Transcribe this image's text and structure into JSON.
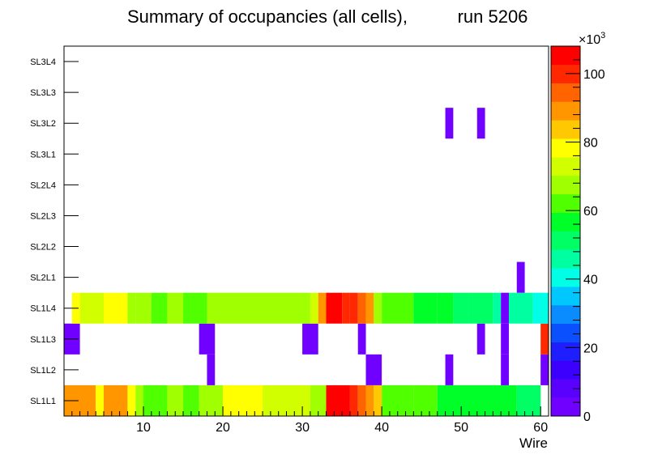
{
  "chart_data": {
    "type": "heatmap",
    "title": "Summary of occupancies (all cells),",
    "run_label": "run 5206",
    "xlabel": "Wire",
    "x_range": [
      0,
      61
    ],
    "x_ticks": [
      10,
      20,
      30,
      40,
      50,
      60
    ],
    "y_labels": [
      "SL1L1",
      "SL1L2",
      "SL1L3",
      "SL1L4",
      "SL2L1",
      "SL2L2",
      "SL2L3",
      "SL2L4",
      "SL3L1",
      "SL3L2",
      "SL3L3",
      "SL3L4"
    ],
    "z_max": 108000,
    "colorbar": {
      "multiplier_label": "×10",
      "multiplier_exponent": "3",
      "ticks": [
        0,
        20,
        40,
        60,
        80,
        100
      ],
      "tick_scale": 1000,
      "colors": [
        "#7000ff",
        "#5a00ff",
        "#3c00ff",
        "#1e1eff",
        "#0a50ff",
        "#0a8cff",
        "#00c8ff",
        "#00ffe6",
        "#00ffa0",
        "#00ff64",
        "#00ff28",
        "#50ff00",
        "#a0ff00",
        "#d2ff00",
        "#ffff00",
        "#ffc800",
        "#ff9600",
        "#ff6400",
        "#ff2800",
        "#ff0000"
      ]
    },
    "rows": {
      "SL1L1": [
        [
          0,
          4,
          87000
        ],
        [
          4,
          5,
          80000
        ],
        [
          5,
          8,
          87000
        ],
        [
          8,
          9,
          76000
        ],
        [
          9,
          10,
          70000
        ],
        [
          10,
          13,
          64000
        ],
        [
          13,
          15,
          70000
        ],
        [
          15,
          17,
          64000
        ],
        [
          17,
          20,
          70000
        ],
        [
          20,
          25,
          76000
        ],
        [
          25,
          31,
          73000
        ],
        [
          31,
          33,
          70000
        ],
        [
          33,
          36,
          105000
        ],
        [
          36,
          37,
          102000
        ],
        [
          37,
          38,
          95000
        ],
        [
          38,
          39,
          90000
        ],
        [
          39,
          40,
          84000
        ],
        [
          40,
          44,
          64000
        ],
        [
          44,
          47,
          60000
        ],
        [
          47,
          57,
          54000
        ],
        [
          57,
          60,
          49000
        ]
      ],
      "SL1L2": [
        [
          18,
          19,
          3000
        ],
        [
          38,
          40,
          3000
        ],
        [
          48,
          49,
          3000
        ],
        [
          55,
          56,
          3000
        ],
        [
          60,
          61,
          3000
        ]
      ],
      "SL1L3": [
        [
          0,
          2,
          3000
        ],
        [
          17,
          19,
          3000
        ],
        [
          30,
          32,
          3000
        ],
        [
          37,
          38,
          3000
        ],
        [
          52,
          53,
          3000
        ],
        [
          55,
          56,
          3000
        ],
        [
          60,
          61,
          102000
        ]
      ],
      "SL1L4": [
        [
          1,
          2,
          80000
        ],
        [
          2,
          5,
          73000
        ],
        [
          5,
          8,
          76000
        ],
        [
          8,
          9,
          70000
        ],
        [
          9,
          11,
          67000
        ],
        [
          11,
          13,
          64000
        ],
        [
          13,
          15,
          67000
        ],
        [
          15,
          18,
          64000
        ],
        [
          18,
          31,
          67000
        ],
        [
          31,
          32,
          73000
        ],
        [
          32,
          33,
          90000
        ],
        [
          33,
          35,
          105000
        ],
        [
          35,
          36,
          102000
        ],
        [
          36,
          37,
          98000
        ],
        [
          37,
          38,
          95000
        ],
        [
          38,
          39,
          90000
        ],
        [
          39,
          40,
          70000
        ],
        [
          40,
          44,
          64000
        ],
        [
          44,
          47,
          57000
        ],
        [
          47,
          49,
          54000
        ],
        [
          49,
          51,
          51000
        ],
        [
          51,
          54,
          49000
        ],
        [
          54,
          55,
          46000
        ],
        [
          55,
          56,
          5000
        ],
        [
          56,
          59,
          46000
        ],
        [
          59,
          61,
          38000
        ]
      ],
      "SL2L1": [
        [
          57,
          58,
          3000
        ]
      ],
      "SL2L2": [],
      "SL2L3": [],
      "SL2L4": [],
      "SL3L1": [],
      "SL3L2": [
        [
          48,
          49,
          3000
        ],
        [
          52,
          53,
          3000
        ]
      ],
      "SL3L3": [],
      "SL3L4": []
    }
  }
}
